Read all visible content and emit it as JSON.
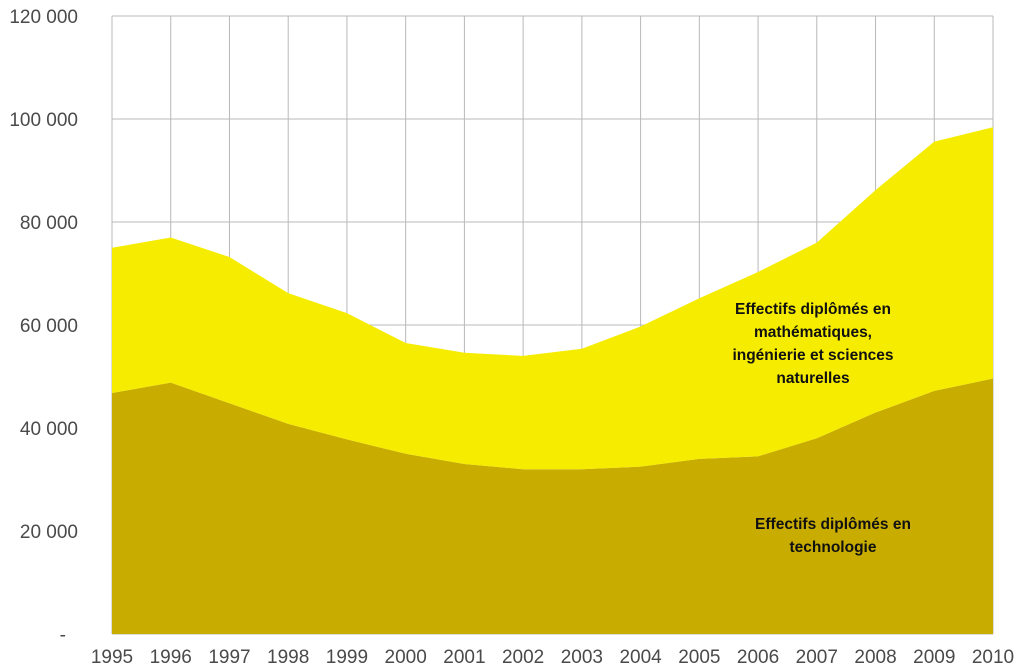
{
  "chart_data": {
    "type": "area",
    "stacked": true,
    "categories": [
      "1995",
      "1996",
      "1997",
      "1998",
      "1999",
      "2000",
      "2001",
      "2002",
      "2003",
      "2004",
      "2005",
      "2006",
      "2007",
      "2008",
      "2009",
      "2010"
    ],
    "y_tick_labels": [
      "-",
      "20 000",
      "40 000",
      "60 000",
      "80 000",
      "100 000",
      "120 000"
    ],
    "ylim": [
      0,
      120000
    ],
    "grid": true,
    "series": [
      {
        "name": "Effectifs diplômés en technologie",
        "label_lines": [
          "Effectifs diplômés en",
          "technologie"
        ],
        "color": "#c8ad00",
        "values": [
          46800,
          48800,
          44800,
          40800,
          37800,
          35000,
          33000,
          32000,
          32000,
          32500,
          34000,
          34500,
          38000,
          43000,
          47200,
          49600
        ]
      },
      {
        "name": "Effectifs diplômés en mathématiques, ingénierie et sciences naturelles",
        "label_lines": [
          "Effectifs diplômés en",
          "mathématiques,",
          "ingénierie et sciences",
          "naturelles"
        ],
        "color": "#f5ec00",
        "values": [
          28200,
          28200,
          28400,
          25400,
          24500,
          21500,
          21600,
          22000,
          23400,
          27200,
          31200,
          35800,
          38000,
          43200,
          48400,
          48800
        ]
      }
    ]
  }
}
